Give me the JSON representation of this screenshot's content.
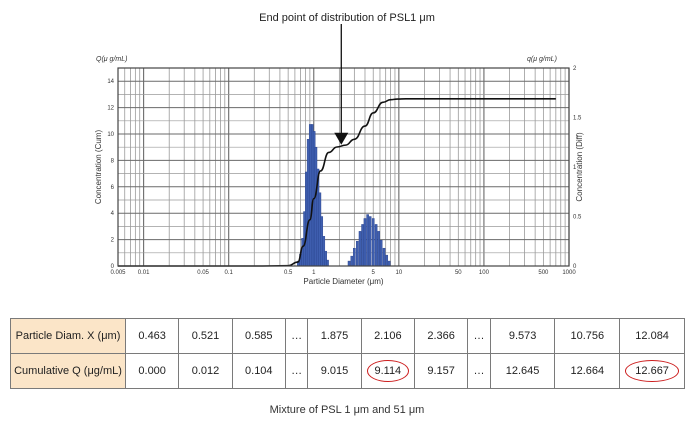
{
  "annotation": "End point of distribution of PSL1 μm",
  "chart_data": {
    "type": "bar",
    "xscale": "log",
    "xlim": [
      0.005,
      1000
    ],
    "xlabel": "Particle Diameter (μm)",
    "y_left": {
      "label": "Concentration (Cum)",
      "unit_label": "Q(μ g/mL)",
      "lim": [
        0,
        15
      ],
      "ticks": [
        "0",
        "2",
        "4",
        "6",
        "8",
        "10",
        "12",
        "14"
      ]
    },
    "y_right": {
      "label": "Concentration (Diff)",
      "unit_label": "q(μ g/mL)",
      "lim": [
        0,
        2
      ],
      "ticks": [
        "0",
        "0.5",
        "1",
        "1.5",
        "2"
      ]
    },
    "x_tick_labels": [
      {
        "v": 0.005,
        "t": "0.005"
      },
      {
        "v": 0.01,
        "t": "0.01"
      },
      {
        "v": 0.05,
        "t": "0.05"
      },
      {
        "v": 0.1,
        "t": "0.1"
      },
      {
        "v": 0.5,
        "t": "0.5"
      },
      {
        "v": 1,
        "t": "1"
      },
      {
        "v": 5,
        "t": "5"
      },
      {
        "v": 10,
        "t": "10"
      },
      {
        "v": 50,
        "t": "50"
      },
      {
        "v": 100,
        "t": "100"
      },
      {
        "v": 500,
        "t": "500"
      },
      {
        "v": 1000,
        "t": "1000"
      }
    ],
    "bars": {
      "axis": "right",
      "x": [
        0.66,
        0.7,
        0.74,
        0.78,
        0.82,
        0.86,
        0.91,
        0.96,
        1.01,
        1.06,
        1.12,
        1.18,
        1.24,
        1.31,
        1.38,
        1.45,
        2.6,
        2.8,
        3.0,
        3.25,
        3.5,
        3.75,
        4.0,
        4.3,
        4.6,
        5.0,
        5.4,
        5.8,
        6.2,
        6.7,
        7.2,
        7.7
      ],
      "values": [
        0.05,
        0.12,
        0.28,
        0.55,
        0.95,
        1.28,
        1.43,
        1.43,
        1.36,
        1.2,
        0.98,
        0.74,
        0.5,
        0.3,
        0.15,
        0.06,
        0.05,
        0.1,
        0.18,
        0.25,
        0.35,
        0.42,
        0.48,
        0.52,
        0.5,
        0.48,
        0.42,
        0.35,
        0.26,
        0.18,
        0.11,
        0.05
      ]
    },
    "cumulative": {
      "axis": "left",
      "x": [
        0.005,
        0.2,
        0.5,
        0.65,
        0.75,
        0.9,
        1.0,
        1.2,
        1.5,
        1.875,
        2.366,
        3.0,
        4.0,
        5.0,
        6.5,
        8.0,
        9.573,
        12.084,
        20,
        100,
        700
      ],
      "values": [
        0,
        0,
        0.02,
        0.3,
        1.5,
        3.5,
        5.1,
        7.2,
        8.6,
        9.015,
        9.157,
        9.6,
        10.6,
        11.6,
        12.4,
        12.6,
        12.645,
        12.667,
        12.667,
        12.667,
        12.667
      ]
    },
    "arrow_target": {
      "x": 2.106,
      "value": 9.114,
      "axis": "left"
    },
    "grid": true
  },
  "table": {
    "rows": [
      {
        "header": "Particle Diam. X (μm)",
        "cells": [
          "0.463",
          "0.521",
          "0.585",
          "…",
          "1.875",
          "2.106",
          "2.366",
          "…",
          "9.573",
          "10.756",
          "12.084"
        ]
      },
      {
        "header": "Cumulative Q (μg/mL)",
        "cells": [
          "0.000",
          "0.012",
          "0.104",
          "…",
          "9.015",
          "9.114",
          "9.157",
          "…",
          "12.645",
          "12.664",
          "12.667"
        ]
      }
    ],
    "highlight_color": "#cc1d1d",
    "header_bg": "#fbe5c8"
  },
  "caption": "Mixture of PSL 1 μm and 51 μm"
}
